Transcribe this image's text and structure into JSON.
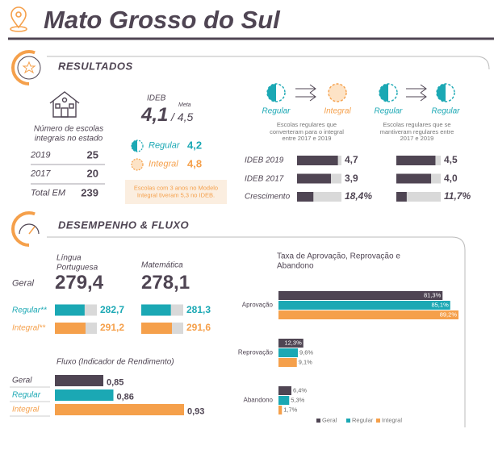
{
  "header": {
    "title": "Mato Grosso do Sul"
  },
  "resultados": {
    "title": "RESULTADOS",
    "schools": {
      "caption": "Número de escolas integrais no estado",
      "rows": [
        {
          "label": "2019",
          "value": "25"
        },
        {
          "label": "2017",
          "value": "20"
        },
        {
          "label": "Total EM",
          "value": "239"
        }
      ]
    },
    "ideb": {
      "label": "IDEB",
      "value": "4,1",
      "meta_label": "Meta",
      "meta": "/ 4,5",
      "regular_label": "Regular",
      "regular": "4,2",
      "integral_label": "Integral",
      "integral": "4,8",
      "note": "Escolas com 3 anos no Modelo Integral tiveram 5,3 no IDEB."
    },
    "comparison": {
      "groups": [
        {
          "from": "Regular",
          "to": "Integral",
          "caption": "Escolas regulares que converteram para o integral entre 2017 e 2019"
        },
        {
          "from": "Regular",
          "to": "Regular",
          "caption": "Escolas regulares que se mantiveram regulares entre 2017 e 2019"
        }
      ],
      "rows": [
        {
          "label": "IDEB 2019",
          "values": [
            4.7,
            4.5
          ],
          "value_labels": [
            "4,7",
            "4,5"
          ]
        },
        {
          "label": "IDEB 2017",
          "values": [
            3.9,
            4.0
          ],
          "value_labels": [
            "3,9",
            "4,0"
          ]
        },
        {
          "label": "Crescimento",
          "values": [
            18.4,
            11.7
          ],
          "value_labels": [
            "18,4%",
            "11,7%"
          ]
        }
      ]
    }
  },
  "desempenho": {
    "title": "DESEMPENHO & FLUXO",
    "subjects": [
      "Língua Portuguesa",
      "Matemática"
    ],
    "rows": [
      {
        "label": "Geral",
        "values": [
          279.4,
          278.1
        ],
        "value_labels": [
          "279,4",
          "278,1"
        ]
      },
      {
        "label": "Regular**",
        "values": [
          282.7,
          281.3
        ],
        "value_labels": [
          "282,7",
          "281,3"
        ]
      },
      {
        "label": "Integral**",
        "values": [
          291.2,
          291.6
        ],
        "value_labels": [
          "291,2",
          "291,6"
        ]
      }
    ],
    "fluxo": {
      "title": "Fluxo (Indicador de Rendimento)",
      "categories": [
        "Geral",
        "Regular",
        "Integral"
      ],
      "values": [
        0.85,
        0.86,
        0.93
      ],
      "value_labels": [
        "0,85",
        "0,86",
        "0,93"
      ]
    },
    "taxa": {
      "title": "Taxa de Aprovação, Reprovação e Abandono",
      "categories": [
        "Aprovação",
        "Reprovação",
        "Abandono"
      ],
      "series": [
        {
          "name": "Geral",
          "color": "#4f4553",
          "values": [
            81.3,
            12.3,
            6.4
          ],
          "value_labels": [
            "81,3%",
            "12,3%",
            "6,4%"
          ]
        },
        {
          "name": "Regular",
          "color": "#1ba8b4",
          "values": [
            85.1,
            9.6,
            5.3
          ],
          "value_labels": [
            "85,1%",
            "9,6%",
            "5,3%"
          ]
        },
        {
          "name": "Integral",
          "color": "#f5a04b",
          "values": [
            89.2,
            9.1,
            1.7
          ],
          "value_labels": [
            "89,2%",
            "9,1%",
            "1,7%"
          ]
        }
      ]
    }
  }
}
